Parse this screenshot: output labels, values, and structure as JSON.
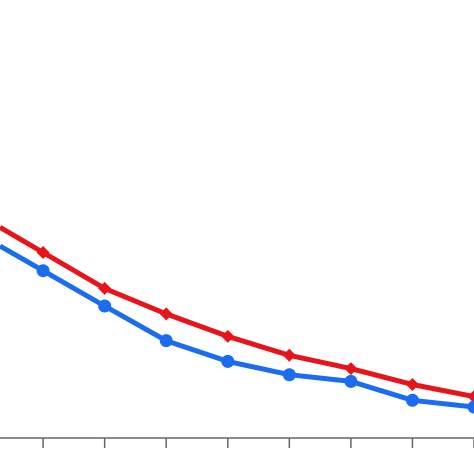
{
  "chart_data": {
    "type": "line",
    "title": "",
    "xlabel": "",
    "ylabel": "",
    "grid": false,
    "x": [
      0,
      1,
      2,
      3,
      4,
      5,
      6,
      7
    ],
    "series": [
      {
        "color": "#e8141c",
        "marker": "diamond",
        "values": [
          30.5,
          24.6,
          20.4,
          16.7,
          13.6,
          11.4,
          8.8,
          6.8
        ]
      },
      {
        "color": "#1a6cf0",
        "marker": "circle",
        "values": [
          27.5,
          21.7,
          16.0,
          12.6,
          10.4,
          9.3,
          6.2,
          5.1
        ]
      }
    ],
    "xlim": [
      -0.7,
      7.0
    ],
    "ylim": [
      0,
      72
    ]
  }
}
